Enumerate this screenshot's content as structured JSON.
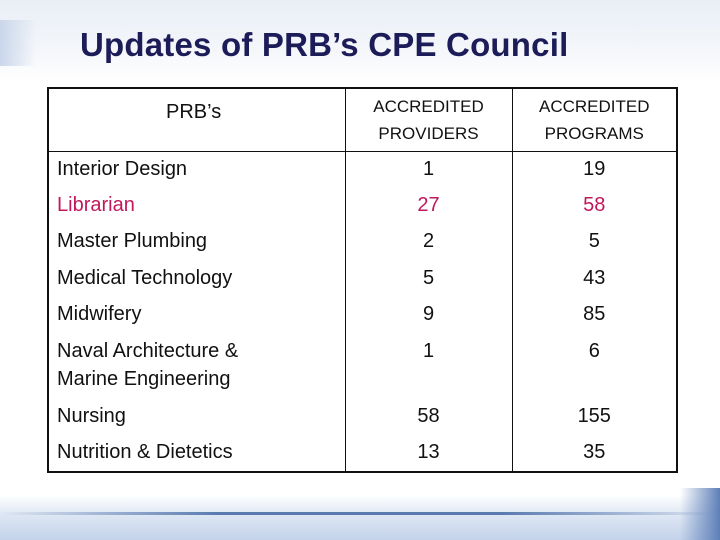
{
  "title": "Updates of PRB’s CPE Council",
  "table": {
    "headers": {
      "name": "PRB’s",
      "providers_line1": "ACCREDITED",
      "providers_line2": "PROVIDERS",
      "programs_line1": "ACCREDITED",
      "programs_line2": "PROGRAMS"
    },
    "rows": [
      {
        "name": "Interior Design",
        "providers": "1",
        "programs": "19"
      },
      {
        "name": "Librarian",
        "providers": "27",
        "programs": "58",
        "highlight": true
      },
      {
        "name": "Master Plumbing",
        "providers": "2",
        "programs": "5"
      },
      {
        "name": "Medical Technology",
        "providers": "5",
        "programs": "43"
      },
      {
        "name": "Midwifery",
        "providers": "9",
        "programs": "85"
      },
      {
        "name_line1": "Naval Architecture &",
        "name_line2": "Marine Engineering",
        "providers": "1",
        "programs": "6"
      },
      {
        "name": "Nursing",
        "providers": "58",
        "programs": "155"
      },
      {
        "name": "Nutrition & Dietetics",
        "providers": "13",
        "programs": "35"
      }
    ]
  },
  "colors": {
    "title": "#1c1c58",
    "highlight_row": "#c2185b"
  }
}
